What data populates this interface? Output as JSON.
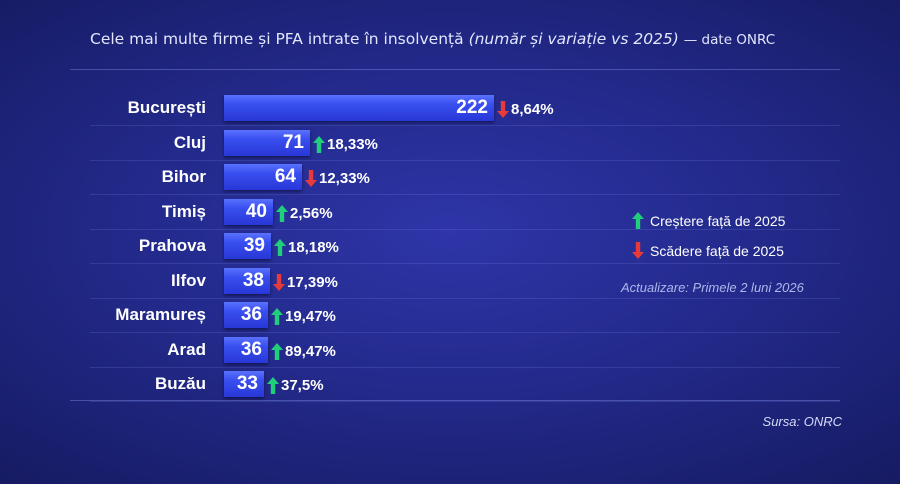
{
  "title": {
    "main": "Cele mai multe firme și PFA intrate în insolvență",
    "paren": "(număr și variație vs 2025)",
    "source_note": "— date ONRC"
  },
  "legend": {
    "up_label": "Creștere față de 2025",
    "down_label": "Scădere față de 2025"
  },
  "update_note": "Actualizare: Primele 2 luni 2026",
  "source": "Sursa: ONRC",
  "colors": {
    "up": "#1fcf7a",
    "down": "#e83a3a",
    "bar": "#3a4ff0"
  },
  "chart_data": {
    "type": "bar",
    "orientation": "horizontal",
    "categories": [
      "București",
      "Cluj",
      "Bihor",
      "Timiș",
      "Prahova",
      "Ilfov",
      "Maramureș",
      "Arad",
      "Buzău"
    ],
    "values": [
      222,
      71,
      64,
      40,
      39,
      38,
      36,
      36,
      33
    ],
    "changes": [
      {
        "text": "8,64%",
        "direction": "down"
      },
      {
        "text": "18,33%",
        "direction": "up"
      },
      {
        "text": "12,33%",
        "direction": "down"
      },
      {
        "text": "2,56%",
        "direction": "up"
      },
      {
        "text": "18,18%",
        "direction": "up"
      },
      {
        "text": "17,39%",
        "direction": "down"
      },
      {
        "text": "19,47%",
        "direction": "up"
      },
      {
        "text": "89,47%",
        "direction": "up"
      },
      {
        "text": "37,5%",
        "direction": "up"
      }
    ],
    "title": "Cele mai multe firme și PFA intrate în insolvență (număr și variație vs 2025) — date ONRC",
    "legend": [
      "Creștere față de 2025",
      "Scădere față de 2025"
    ]
  }
}
